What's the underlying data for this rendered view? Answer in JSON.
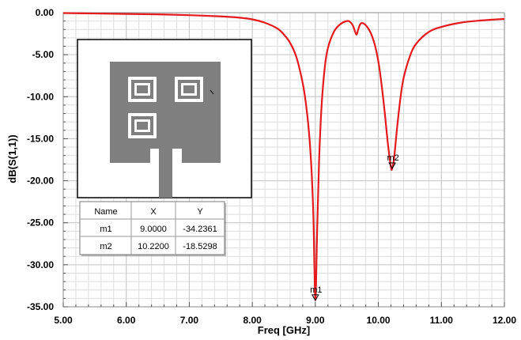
{
  "chart_data": {
    "type": "line",
    "xlabel": "Freq [GHz]",
    "ylabel": "dB(S(1,1))",
    "xlim": [
      5.0,
      12.0
    ],
    "ylim": [
      -35.0,
      0.0
    ],
    "x_ticks": [
      "5.00",
      "6.00",
      "7.00",
      "8.00",
      "9.00",
      "10.00",
      "11.00",
      "12.00"
    ],
    "y_ticks": [
      "0.00",
      "-5.00",
      "-10.00",
      "-15.00",
      "-20.00",
      "-25.00",
      "-30.00",
      "-35.00"
    ],
    "grid": true,
    "series": [
      {
        "color": "#e41a1c",
        "x": [
          5.0,
          5.5,
          6.0,
          6.5,
          7.0,
          7.5,
          7.8,
          8.0,
          8.2,
          8.4,
          8.5,
          8.6,
          8.7,
          8.8,
          8.85,
          8.9,
          8.94,
          8.97,
          9.0,
          9.03,
          9.06,
          9.1,
          9.15,
          9.2,
          9.3,
          9.4,
          9.5,
          9.55,
          9.6,
          9.65,
          9.68,
          9.72,
          9.78,
          9.85,
          9.9,
          9.95,
          10.0,
          10.05,
          10.1,
          10.15,
          10.2,
          10.22,
          10.25,
          10.3,
          10.35,
          10.4,
          10.5,
          10.6,
          10.8,
          11.0,
          11.3,
          11.6,
          12.0
        ],
        "y": [
          -0.05,
          -0.1,
          -0.15,
          -0.2,
          -0.3,
          -0.45,
          -0.6,
          -0.8,
          -1.2,
          -1.9,
          -2.6,
          -3.6,
          -5.3,
          -8.4,
          -10.8,
          -14.3,
          -18.8,
          -24.5,
          -34.2,
          -25.5,
          -17.5,
          -11.0,
          -6.5,
          -4.2,
          -2.2,
          -1.35,
          -1.0,
          -1.1,
          -1.6,
          -2.6,
          -2.0,
          -1.3,
          -1.35,
          -2.0,
          -2.8,
          -4.0,
          -5.8,
          -8.5,
          -11.8,
          -15.5,
          -18.4,
          -18.5,
          -17.3,
          -13.5,
          -10.2,
          -7.8,
          -5.2,
          -3.7,
          -2.3,
          -1.7,
          -1.2,
          -0.95,
          -0.75
        ]
      }
    ],
    "markers": [
      {
        "name": "m1",
        "x": 9.0,
        "y": -34.2361
      },
      {
        "name": "m2",
        "x": 10.22,
        "y": -18.5298
      }
    ],
    "marker_table": {
      "headers": [
        "Name",
        "X",
        "Y"
      ],
      "rows": [
        [
          "m1",
          "9.0000",
          "-34.2361"
        ],
        [
          "m2",
          "10.2200",
          "-18.5298"
        ]
      ]
    }
  }
}
